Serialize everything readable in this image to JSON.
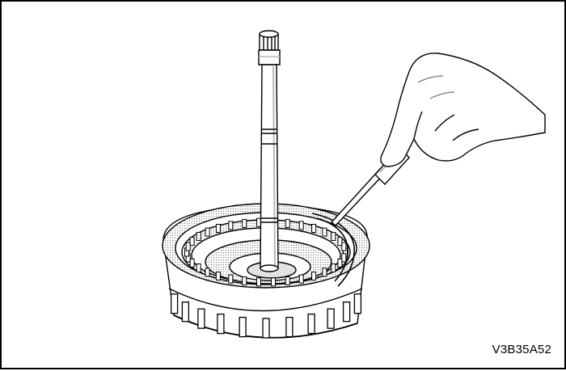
{
  "figure": {
    "code": "V3B35A52",
    "colors": {
      "background": "#ffffff",
      "line": "#000000",
      "shade": "#b8b8b8",
      "shade_light": "#e2e2e2"
    },
    "icons": [
      "shaft",
      "clutch-housing",
      "snap-ring",
      "screwdriver",
      "hand"
    ]
  }
}
